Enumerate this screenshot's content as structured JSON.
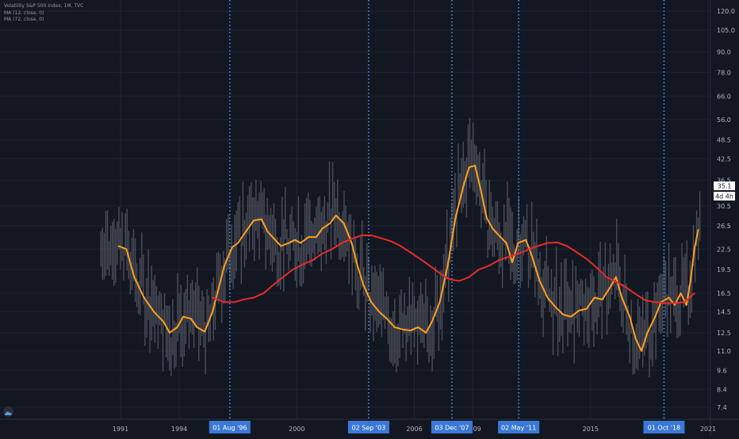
{
  "legend": {
    "symbol_line": "Volatility S&P 500 Index, 1M, TVC",
    "ma1_line": "MA (12, close, 0)",
    "ma2_line": "MA (72, close, 0)"
  },
  "icons": {
    "logo": "cloud-logo-icon"
  },
  "colors": {
    "background": "#131722",
    "grid": "#1f2330",
    "candles": "#5d606b",
    "ma12": "#ff9f1c",
    "ma72": "#e52b2b",
    "vline": "#4ea7ff",
    "axis_text": "#b2b5be",
    "badge": "#3a78d6"
  },
  "overlays": {
    "price_badge": "35.1",
    "countdown_badge": "4d 4h"
  },
  "chart_data": {
    "type": "line",
    "title": "",
    "y_scale": "log",
    "ylim": [
      6.9,
      130
    ],
    "xlim": [
      1989.25,
      2021.0
    ],
    "y_ticks": [
      "120.0",
      "105.0",
      "90.0",
      "78.0",
      "66.0",
      "56.0",
      "48.5",
      "42.5",
      "36.5",
      "30.5",
      "26.5",
      "22.5",
      "19.5",
      "16.5",
      "14.5",
      "12.5",
      "11.0",
      "9.6",
      "8.4",
      "7.4"
    ],
    "x_ticks": [
      {
        "label": "1991",
        "year": 1991
      },
      {
        "label": "1994",
        "year": 1994
      },
      {
        "label": "2000",
        "year": 2000
      },
      {
        "label": "2006",
        "year": 2006
      },
      {
        "label": "2009",
        "year": 2009
      },
      {
        "label": "2015",
        "year": 2015
      },
      {
        "label": "2021",
        "year": 2021
      }
    ],
    "event_lines": [
      {
        "label": "01 Aug '96",
        "year": 1996.58
      },
      {
        "label": "02 Sep '03",
        "year": 2003.67
      },
      {
        "label": "03 Dec '07",
        "year": 2007.92
      },
      {
        "label": "02 May '11",
        "year": 2011.33
      },
      {
        "label": "01 Oct '18",
        "year": 2018.75
      }
    ],
    "series": [
      {
        "name": "MA (12, close, 0)",
        "x": [
          1990.9,
          1991.3,
          1991.7,
          1992.2,
          1992.7,
          1993.2,
          1993.5,
          1993.9,
          1994.2,
          1994.6,
          1994.9,
          1995.3,
          1995.7,
          1996.0,
          1996.3,
          1996.7,
          1997.0,
          1997.4,
          1997.8,
          1998.2,
          1998.5,
          1998.9,
          1999.2,
          1999.6,
          1999.9,
          2000.2,
          2000.6,
          2001.0,
          2001.3,
          2001.7,
          2002.0,
          2002.4,
          2002.8,
          2003.1,
          2003.4,
          2003.8,
          2004.2,
          2004.6,
          2005.0,
          2005.4,
          2005.8,
          2006.2,
          2006.6,
          2006.9,
          2007.3,
          2007.7,
          2008.1,
          2008.5,
          2008.8,
          2009.1,
          2009.4,
          2009.7,
          2010.0,
          2010.4,
          2010.7,
          2011.0,
          2011.3,
          2011.7,
          2012.0,
          2012.4,
          2012.8,
          2013.2,
          2013.6,
          2014.0,
          2014.4,
          2014.8,
          2015.2,
          2015.6,
          2016.0,
          2016.3,
          2016.6,
          2017.0,
          2017.3,
          2017.6,
          2017.9,
          2018.3,
          2018.6,
          2019.0,
          2019.3,
          2019.6,
          2019.9,
          2020.1,
          2020.3,
          2020.5
        ],
        "values": [
          23.0,
          22.5,
          18.5,
          16.0,
          14.5,
          13.5,
          12.5,
          13.0,
          14.0,
          13.8,
          13.0,
          12.6,
          14.5,
          17.0,
          20.0,
          22.8,
          23.5,
          25.5,
          27.5,
          27.8,
          25.5,
          24.0,
          23.0,
          23.5,
          24.0,
          23.5,
          24.5,
          24.5,
          26.0,
          27.0,
          28.5,
          27.0,
          23.5,
          20.0,
          17.5,
          15.5,
          14.5,
          13.8,
          13.0,
          12.8,
          12.7,
          13.0,
          12.5,
          13.5,
          15.5,
          20.0,
          28.0,
          35.0,
          40.0,
          40.5,
          34.0,
          28.0,
          26.0,
          24.5,
          23.5,
          20.5,
          23.5,
          24.0,
          21.5,
          18.0,
          16.0,
          15.0,
          14.2,
          14.0,
          14.6,
          14.8,
          16.0,
          15.8,
          17.2,
          18.5,
          16.0,
          14.0,
          12.0,
          11.0,
          12.5,
          14.0,
          15.5,
          16.0,
          15.2,
          16.5,
          15.2,
          18.0,
          22.5,
          25.8
        ]
      },
      {
        "name": "MA (72, close, 0)",
        "x": [
          1995.7,
          1996.3,
          1996.8,
          1997.3,
          1997.8,
          1998.3,
          1998.8,
          1999.3,
          1999.8,
          2000.3,
          2000.8,
          2001.3,
          2001.8,
          2002.3,
          2002.8,
          2003.3,
          2003.8,
          2004.3,
          2004.8,
          2005.3,
          2005.8,
          2006.3,
          2006.8,
          2007.3,
          2007.8,
          2008.3,
          2008.8,
          2009.3,
          2009.8,
          2010.3,
          2010.8,
          2011.3,
          2011.8,
          2012.3,
          2012.8,
          2013.3,
          2013.8,
          2014.3,
          2014.8,
          2015.3,
          2015.8,
          2016.3,
          2016.8,
          2017.3,
          2017.8,
          2018.3,
          2018.8,
          2019.3,
          2019.8,
          2020.3
        ],
        "values": [
          16.0,
          15.5,
          15.5,
          15.8,
          16.0,
          16.5,
          17.5,
          18.5,
          19.5,
          20.2,
          20.8,
          21.8,
          22.5,
          23.5,
          24.2,
          24.8,
          24.8,
          24.3,
          23.8,
          23.0,
          22.0,
          21.0,
          20.0,
          19.0,
          18.2,
          18.0,
          18.5,
          19.5,
          20.0,
          20.8,
          21.3,
          21.8,
          22.4,
          23.0,
          23.5,
          23.6,
          23.0,
          22.0,
          21.0,
          19.8,
          18.5,
          17.9,
          17.2,
          16.4,
          15.7,
          15.5,
          15.4,
          15.4,
          15.5,
          16.5
        ]
      }
    ]
  }
}
